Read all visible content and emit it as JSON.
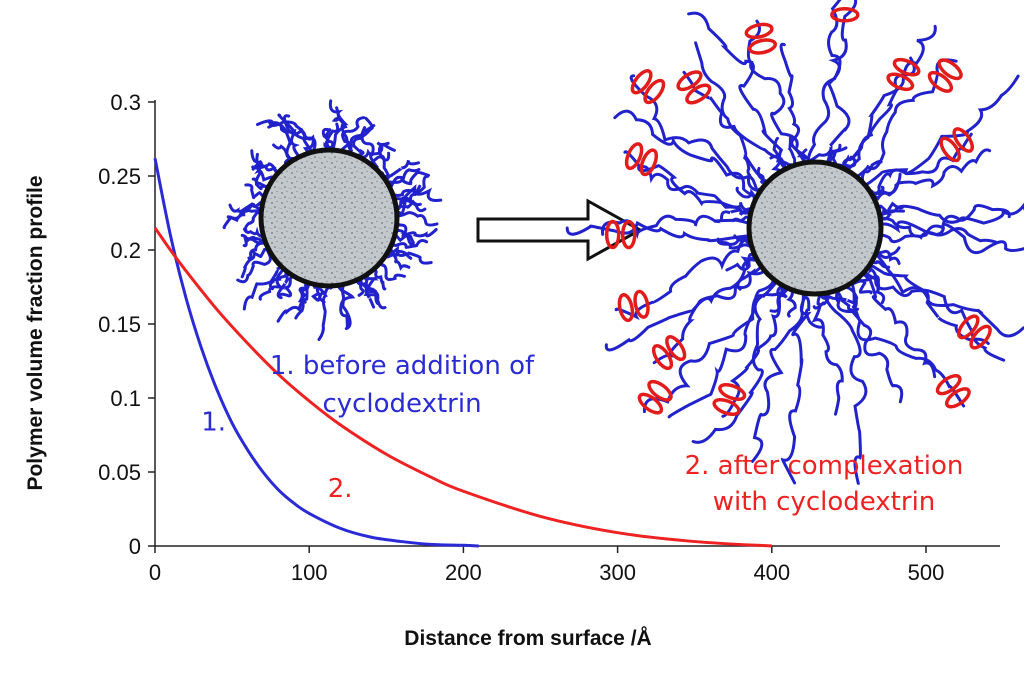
{
  "chart_data": {
    "type": "line",
    "title": "",
    "xlabel": "Distance from surface /Å",
    "ylabel": "Polymer volume fraction profile",
    "xlim": [
      0,
      550
    ],
    "ylim": [
      0,
      0.3
    ],
    "x_ticks": [
      0,
      100,
      200,
      300,
      400,
      500
    ],
    "x_tick_labels": [
      "0",
      "100",
      "200",
      "300",
      "400",
      "500"
    ],
    "y_ticks": [
      0,
      0.05,
      0.1,
      0.15,
      0.2,
      0.25,
      0.3
    ],
    "y_tick_labels": [
      "0",
      "0.05",
      "0.1",
      "0.15",
      "0.2",
      "0.25",
      "0.3"
    ],
    "grid": false,
    "series": [
      {
        "name": "1.",
        "color": "#2b2bd6",
        "x": [
          0,
          10,
          20,
          30,
          40,
          50,
          60,
          70,
          80,
          90,
          100,
          120,
          140,
          160,
          180,
          200,
          210
        ],
        "y": [
          0.262,
          0.21,
          0.168,
          0.134,
          0.106,
          0.083,
          0.065,
          0.05,
          0.038,
          0.029,
          0.022,
          0.012,
          0.006,
          0.003,
          0.001,
          0.0005,
          0.0
        ]
      },
      {
        "name": "2.",
        "color": "#ee2222",
        "x": [
          0,
          10,
          20,
          40,
          60,
          80,
          100,
          120,
          150,
          180,
          200,
          250,
          300,
          350,
          400
        ],
        "y": [
          0.215,
          0.2,
          0.186,
          0.16,
          0.137,
          0.116,
          0.098,
          0.082,
          0.062,
          0.046,
          0.037,
          0.02,
          0.009,
          0.003,
          0.0
        ]
      }
    ],
    "annotations": [
      {
        "id": "label1",
        "text": "1.",
        "color": "#2b2bd6",
        "x": 30,
        "y": 0.078
      },
      {
        "id": "label2",
        "text": "2.",
        "color": "#ee2222",
        "x": 112,
        "y": 0.033
      }
    ]
  },
  "illustration": {
    "before_caption_line1": "1. before addition of",
    "before_caption_line2": "cyclodextrin",
    "before_color": "#2b2bd6",
    "after_caption_line1": "2. after complexation",
    "after_caption_line2": "with cyclodextrin",
    "after_color": "#ee2222",
    "polymer_color": "#2222cc",
    "cyclodextrin_color": "#e21b1b",
    "particle_fill": "#b9bfc3",
    "arrow_icon": "right-arrow-icon"
  }
}
